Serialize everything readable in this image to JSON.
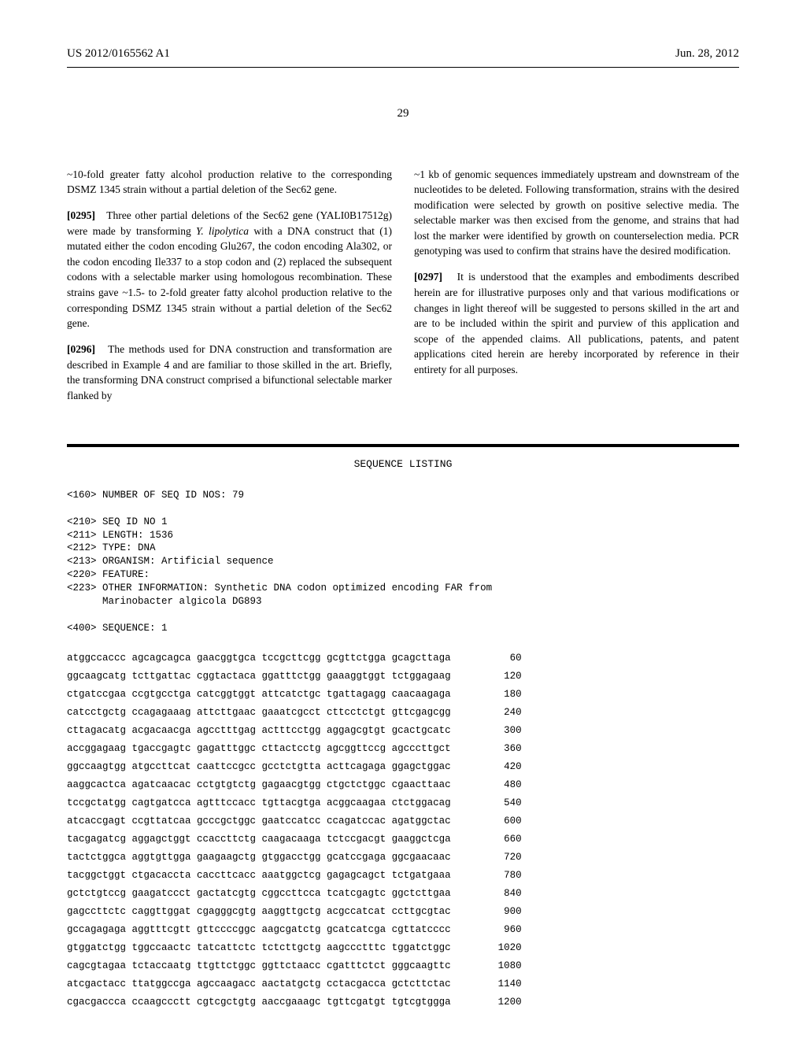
{
  "header": {
    "left": "US 2012/0165562 A1",
    "right": "Jun. 28, 2012"
  },
  "page_number": "29",
  "left_column": {
    "p1": "~10-fold greater fatty alcohol production relative to the corresponding DSMZ 1345 strain without a partial deletion of the Sec62 gene.",
    "p2_label": "[0295]",
    "p2_a": "Three other partial deletions of the Sec62 gene (YALI0B17512g) were made by transforming ",
    "p2_b": "Y. lipolytica",
    "p2_c": " with a DNA construct that (1) mutated either the codon encoding Glu267, the codon encoding Ala302, or the codon encoding Ile337 to a stop codon and (2) replaced the subsequent codons with a selectable marker using homologous recombination. These strains gave ~1.5- to 2-fold greater fatty alcohol production relative to the corresponding DSMZ 1345 strain without a partial deletion of the Sec62 gene.",
    "p3_label": "[0296]",
    "p3": "The methods used for DNA construction and transformation are described in Example 4 and are familiar to those skilled in the art. Briefly, the transforming DNA construct comprised a bifunctional selectable marker flanked by"
  },
  "right_column": {
    "p1": "~1 kb of genomic sequences immediately upstream and downstream of the nucleotides to be deleted. Following transformation, strains with the desired modification were selected by growth on positive selective media. The selectable marker was then excised from the genome, and strains that had lost the marker were identified by growth on counterselection media. PCR genotyping was used to confirm that strains have the desired modification.",
    "p2_label": "[0297]",
    "p2": "It is understood that the examples and embodiments described herein are for illustrative purposes only and that various modifications or changes in light thereof will be suggested to persons skilled in the art and are to be included within the spirit and purview of this application and scope of the appended claims. All publications, patents, and patent applications cited herein are hereby incorporated by reference in their entirety for all purposes."
  },
  "sequence_listing": {
    "title": "SEQUENCE LISTING",
    "meta_block": "<160> NUMBER OF SEQ ID NOS: 79\n\n<210> SEQ ID NO 1\n<211> LENGTH: 1536\n<212> TYPE: DNA\n<213> ORGANISM: Artificial sequence\n<220> FEATURE:\n<223> OTHER INFORMATION: Synthetic DNA codon optimized encoding FAR from\n      Marinobacter algicola DG893\n\n<400> SEQUENCE: 1",
    "rows": [
      {
        "seq": "atggccaccc agcagcagca gaacggtgca tccgcttcgg gcgttctgga gcagcttaga",
        "pos": "60"
      },
      {
        "seq": "ggcaagcatg tcttgattac cggtactaca ggatttctgg gaaaggtggt tctggagaag",
        "pos": "120"
      },
      {
        "seq": "ctgatccgaa ccgtgcctga catcggtggt attcatctgc tgattagagg caacaagaga",
        "pos": "180"
      },
      {
        "seq": "catcctgctg ccagagaaag attcttgaac gaaatcgcct cttcctctgt gttcgagcgg",
        "pos": "240"
      },
      {
        "seq": "cttagacatg acgacaacga agcctttgag actttcctgg aggagcgtgt gcactgcatc",
        "pos": "300"
      },
      {
        "seq": "accggagaag tgaccgagtc gagatttggc cttactcctg agcggttccg agcccttgct",
        "pos": "360"
      },
      {
        "seq": "ggccaagtgg atgccttcat caattccgcc gcctctgtta acttcagaga ggagctggac",
        "pos": "420"
      },
      {
        "seq": "aaggcactca agatcaacac cctgtgtctg gagaacgtgg ctgctctggc cgaacttaac",
        "pos": "480"
      },
      {
        "seq": "tccgctatgg cagtgatcca agtttccacc tgttacgtga acggcaagaa ctctggacag",
        "pos": "540"
      },
      {
        "seq": "atcaccgagt ccgttatcaa gcccgctggc gaatccatcc ccagatccac agatggctac",
        "pos": "600"
      },
      {
        "seq": "tacgagatcg aggagctggt ccaccttctg caagacaaga tctccgacgt gaaggctcga",
        "pos": "660"
      },
      {
        "seq": "tactctggca aggtgttgga gaagaagctg gtggacctgg gcatccgaga ggcgaacaac",
        "pos": "720"
      },
      {
        "seq": "tacggctggt ctgacaccta caccttcacc aaatggctcg gagagcagct tctgatgaaa",
        "pos": "780"
      },
      {
        "seq": "gctctgtccg gaagatccct gactatcgtg cggccttcca tcatcgagtc ggctcttgaa",
        "pos": "840"
      },
      {
        "seq": "gagccttctc caggttggat cgagggcgtg aaggttgctg acgccatcat ccttgcgtac",
        "pos": "900"
      },
      {
        "seq": "gccagagaga aggtttcgtt gttccccggc aagcgatctg gcatcatcga cgttatcccc",
        "pos": "960"
      },
      {
        "seq": "gtggatctgg tggccaactc tatcattctc tctcttgctg aagccctttc tggatctggc",
        "pos": "1020"
      },
      {
        "seq": "cagcgtagaa tctaccaatg ttgttctggc ggttctaacc cgatttctct gggcaagttc",
        "pos": "1080"
      },
      {
        "seq": "atcgactacc ttatggccga agccaagacc aactatgctg cctacgacca gctcttctac",
        "pos": "1140"
      },
      {
        "seq": "cgacgaccca ccaagccctt cgtcgctgtg aaccgaaagc tgttcgatgt tgtcgtggga",
        "pos": "1200"
      }
    ]
  }
}
